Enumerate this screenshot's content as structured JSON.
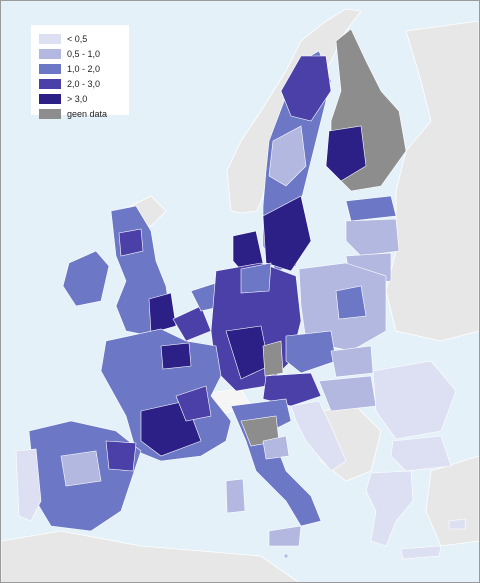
{
  "legend": {
    "items": [
      {
        "label": "< 0,5",
        "color": "#dde0f2"
      },
      {
        "label": "0,5 - 1,0",
        "color": "#b3b8e0"
      },
      {
        "label": "1,0 - 2,0",
        "color": "#6c77c6"
      },
      {
        "label": "2,0 - 3,0",
        "color": "#4b3fa8"
      },
      {
        "label": "> 3,0",
        "color": "#2c1f85"
      },
      {
        "label": "geen data",
        "color": "#8d8d8d"
      }
    ]
  },
  "colors": {
    "sea": "#e4f1f9",
    "non_eu_land": "#e7e7e7",
    "border": "#ffffff"
  }
}
